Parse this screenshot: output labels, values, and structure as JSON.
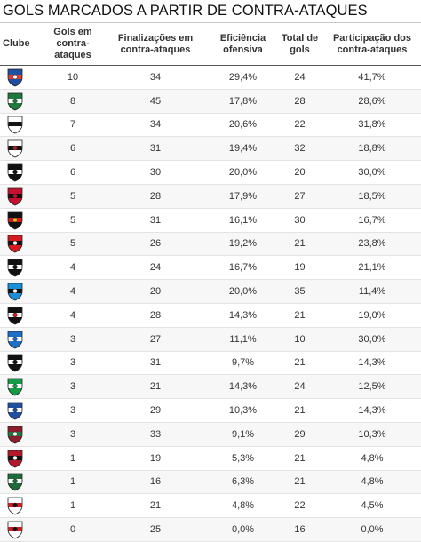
{
  "title": "GOLS MARCADOS A PARTIR DE CONTRA-ATAQUES",
  "headers": [
    "Clube",
    "Gols em contra-ataques",
    "Finalizações em contra-ataques",
    "Eficiência ofensiva",
    "Total de gols",
    "Participação dos contra-ataques"
  ],
  "chart_data": {
    "type": "table",
    "columns": [
      "Clube",
      "Gols em contra-ataques",
      "Finalizações em contra-ataques",
      "Eficiência ofensiva",
      "Total de gols",
      "Participação dos contra-ataques"
    ],
    "rows": [
      {
        "logo": "bahia-crest-icon",
        "colors": [
          "#1d4fa3",
          "#e03c31",
          "#ffffff"
        ],
        "goals": "10",
        "shots": "34",
        "efficiency": "29,4%",
        "total": "24",
        "share": "41,7%"
      },
      {
        "logo": "palmeiras-crest-icon",
        "colors": [
          "#1f7a3d",
          "#ffffff",
          "#1f7a3d"
        ],
        "goals": "8",
        "shots": "45",
        "efficiency": "17,8%",
        "total": "28",
        "share": "28,6%"
      },
      {
        "logo": "santos-crest-icon",
        "colors": [
          "#ffffff",
          "#111111",
          "#111111"
        ],
        "goals": "7",
        "shots": "34",
        "efficiency": "20,6%",
        "total": "22",
        "share": "31,8%"
      },
      {
        "logo": "corinthians-crest-icon",
        "colors": [
          "#ffffff",
          "#111111",
          "#b22222"
        ],
        "goals": "6",
        "shots": "31",
        "efficiency": "19,4%",
        "total": "32",
        "share": "18,8%"
      },
      {
        "logo": "ponte-preta-crest-icon",
        "colors": [
          "#111111",
          "#ffffff",
          "#111111"
        ],
        "goals": "6",
        "shots": "30",
        "efficiency": "20,0%",
        "total": "20",
        "share": "30,0%"
      },
      {
        "logo": "flamengo-crest-icon",
        "colors": [
          "#c8102e",
          "#111111",
          "#c8102e"
        ],
        "goals": "5",
        "shots": "28",
        "efficiency": "17,9%",
        "total": "27",
        "share": "18,5%"
      },
      {
        "logo": "sport-crest-icon",
        "colors": [
          "#111111",
          "#d71920",
          "#f2c200"
        ],
        "goals": "5",
        "shots": "31",
        "efficiency": "16,1%",
        "total": "30",
        "share": "16,7%"
      },
      {
        "logo": "vitoria-crest-icon",
        "colors": [
          "#d71920",
          "#111111",
          "#ffffff"
        ],
        "goals": "5",
        "shots": "26",
        "efficiency": "19,2%",
        "total": "21",
        "share": "23,8%"
      },
      {
        "logo": "atletico-mg-crest-icon",
        "colors": [
          "#111111",
          "#ffffff",
          "#111111"
        ],
        "goals": "4",
        "shots": "24",
        "efficiency": "16,7%",
        "total": "19",
        "share": "21,1%"
      },
      {
        "logo": "gremio-crest-icon",
        "colors": [
          "#1a8fd8",
          "#111111",
          "#ffffff"
        ],
        "goals": "4",
        "shots": "20",
        "efficiency": "20,0%",
        "total": "35",
        "share": "11,4%"
      },
      {
        "logo": "vasco-crest-icon",
        "colors": [
          "#111111",
          "#ffffff",
          "#d71920"
        ],
        "goals": "4",
        "shots": "28",
        "efficiency": "14,3%",
        "total": "21",
        "share": "19,0%"
      },
      {
        "logo": "avai-crest-icon",
        "colors": [
          "#1d6fc4",
          "#ffffff",
          "#1d6fc4"
        ],
        "goals": "3",
        "shots": "27",
        "efficiency": "11,1%",
        "total": "10",
        "share": "30,0%"
      },
      {
        "logo": "botafogo-crest-icon",
        "colors": [
          "#111111",
          "#ffffff",
          "#111111"
        ],
        "goals": "3",
        "shots": "31",
        "efficiency": "9,7%",
        "total": "21",
        "share": "14,3%"
      },
      {
        "logo": "chapecoense-crest-icon",
        "colors": [
          "#149c48",
          "#ffffff",
          "#149c48"
        ],
        "goals": "3",
        "shots": "21",
        "efficiency": "14,3%",
        "total": "24",
        "share": "12,5%"
      },
      {
        "logo": "cruzeiro-crest-icon",
        "colors": [
          "#1f4fa0",
          "#ffffff",
          "#1f4fa0"
        ],
        "goals": "3",
        "shots": "29",
        "efficiency": "10,3%",
        "total": "21",
        "share": "14,3%"
      },
      {
        "logo": "fluminense-crest-icon",
        "colors": [
          "#8a1e2d",
          "#1f7a3d",
          "#ffffff"
        ],
        "goals": "3",
        "shots": "33",
        "efficiency": "9,1%",
        "total": "29",
        "share": "10,3%"
      },
      {
        "logo": "atletico-pr-crest-icon",
        "colors": [
          "#b3182a",
          "#111111",
          "#ffffff"
        ],
        "goals": "1",
        "shots": "19",
        "efficiency": "5,3%",
        "total": "21",
        "share": "4,8%"
      },
      {
        "logo": "coritiba-crest-icon",
        "colors": [
          "#1d6b3a",
          "#ffffff",
          "#1d6b3a"
        ],
        "goals": "1",
        "shots": "16",
        "efficiency": "6,3%",
        "total": "21",
        "share": "4,8%"
      },
      {
        "logo": "sao-paulo-crest-icon",
        "colors": [
          "#ffffff",
          "#d71920",
          "#111111"
        ],
        "goals": "1",
        "shots": "21",
        "efficiency": "4,8%",
        "total": "22",
        "share": "4,5%"
      },
      {
        "logo": "atletico-go-crest-icon",
        "colors": [
          "#ffffff",
          "#d71920",
          "#111111"
        ],
        "goals": "0",
        "shots": "25",
        "efficiency": "0,0%",
        "total": "16",
        "share": "0,0%"
      }
    ]
  }
}
